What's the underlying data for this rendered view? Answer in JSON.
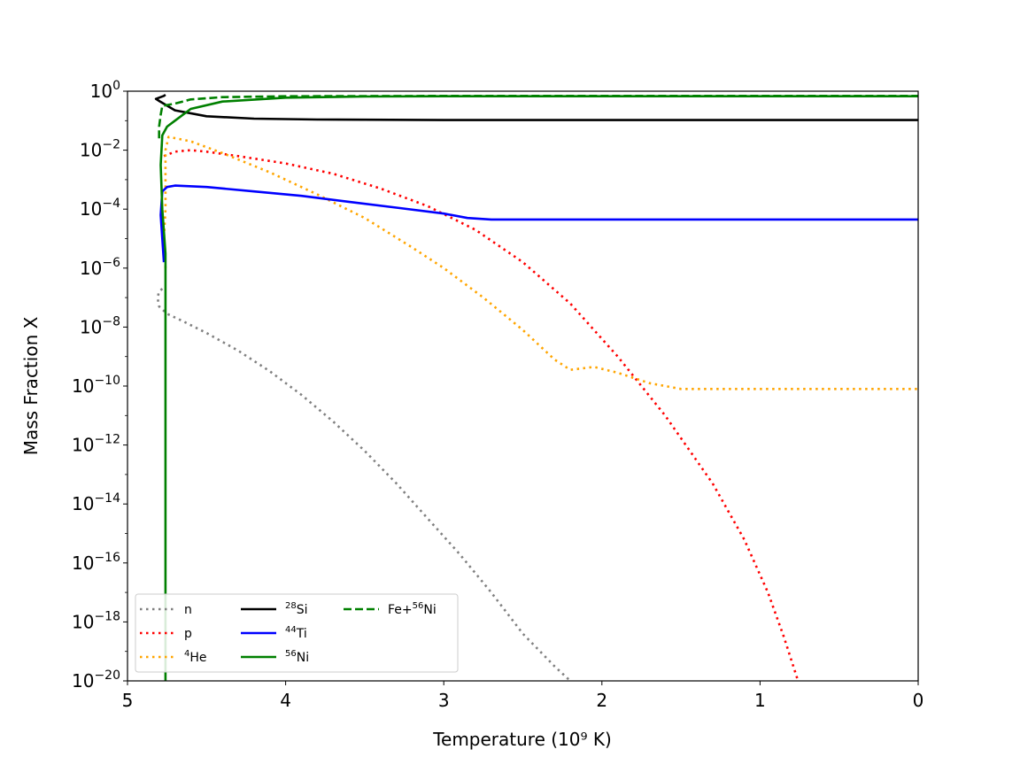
{
  "chart_data": {
    "type": "line",
    "title": "",
    "xlabel": "Temperature (10⁹ K)",
    "ylabel": "Mass Fraction X",
    "x_unit": "10^9 K",
    "xlim": [
      5,
      0
    ],
    "x_axis_inverted": true,
    "ylim": [
      1e-20,
      1
    ],
    "y_scale": "log",
    "grid": false,
    "legend_position": "lower-left",
    "legend_columns": 3,
    "x_ticks": [
      {
        "value": 5,
        "label": "5"
      },
      {
        "value": 4,
        "label": "4"
      },
      {
        "value": 3,
        "label": "3"
      },
      {
        "value": 2,
        "label": "2"
      },
      {
        "value": 1,
        "label": "1"
      },
      {
        "value": 0,
        "label": "0"
      }
    ],
    "y_ticks": [
      {
        "exp": 0,
        "base": "10",
        "sup": "0"
      },
      {
        "exp": -2,
        "base": "10",
        "sup": "−2"
      },
      {
        "exp": -4,
        "base": "10",
        "sup": "−4"
      },
      {
        "exp": -6,
        "base": "10",
        "sup": "−6"
      },
      {
        "exp": -8,
        "base": "10",
        "sup": "−8"
      },
      {
        "exp": -10,
        "base": "10",
        "sup": "−10"
      },
      {
        "exp": -12,
        "base": "10",
        "sup": "−12"
      },
      {
        "exp": -14,
        "base": "10",
        "sup": "−14"
      },
      {
        "exp": -16,
        "base": "10",
        "sup": "−16"
      },
      {
        "exp": -18,
        "base": "10",
        "sup": "−18"
      },
      {
        "exp": -20,
        "base": "10",
        "sup": "−20"
      }
    ],
    "series": [
      {
        "name": "n",
        "legend_sup": "",
        "legend_text": "n",
        "color": "#808080",
        "dash": "dotted",
        "points": [
          [
            4.78,
            -6.7
          ],
          [
            4.8,
            -6.8
          ],
          [
            4.81,
            -7.0
          ],
          [
            4.8,
            -7.3
          ],
          [
            4.75,
            -7.55
          ],
          [
            4.65,
            -7.8
          ],
          [
            4.5,
            -8.2
          ],
          [
            4.3,
            -8.8
          ],
          [
            4.1,
            -9.5
          ],
          [
            3.9,
            -10.3
          ],
          [
            3.7,
            -11.2
          ],
          [
            3.5,
            -12.2
          ],
          [
            3.3,
            -13.3
          ],
          [
            3.1,
            -14.5
          ],
          [
            2.9,
            -15.7
          ],
          [
            2.7,
            -17.0
          ],
          [
            2.5,
            -18.4
          ],
          [
            2.3,
            -19.5
          ],
          [
            2.2,
            -20.0
          ]
        ]
      },
      {
        "name": "p",
        "legend_sup": "",
        "legend_text": "p",
        "color": "#ff0000",
        "dash": "dotted",
        "points": [
          [
            4.77,
            -2.2
          ],
          [
            4.7,
            -2.05
          ],
          [
            4.6,
            -2.0
          ],
          [
            4.5,
            -2.05
          ],
          [
            4.3,
            -2.2
          ],
          [
            4.0,
            -2.45
          ],
          [
            3.7,
            -2.8
          ],
          [
            3.4,
            -3.3
          ],
          [
            3.1,
            -3.9
          ],
          [
            2.8,
            -4.7
          ],
          [
            2.5,
            -5.8
          ],
          [
            2.2,
            -7.2
          ],
          [
            1.9,
            -9.0
          ],
          [
            1.6,
            -11.0
          ],
          [
            1.3,
            -13.3
          ],
          [
            1.1,
            -15.2
          ],
          [
            0.95,
            -17.0
          ],
          [
            0.85,
            -18.5
          ],
          [
            0.76,
            -20.0
          ]
        ]
      },
      {
        "name": "He",
        "legend_sup": "4",
        "legend_text": "He",
        "color": "#ffa500",
        "dash": "dotted",
        "points": [
          [
            4.76,
            -6.0
          ],
          [
            4.77,
            -5.0
          ],
          [
            4.76,
            -4.0
          ],
          [
            4.76,
            -3.0
          ],
          [
            4.76,
            -2.0
          ],
          [
            4.74,
            -1.55
          ],
          [
            4.6,
            -1.7
          ],
          [
            4.4,
            -2.1
          ],
          [
            4.1,
            -2.75
          ],
          [
            3.8,
            -3.5
          ],
          [
            3.5,
            -4.3
          ],
          [
            3.2,
            -5.3
          ],
          [
            3.0,
            -6.0
          ],
          [
            2.75,
            -7.0
          ],
          [
            2.5,
            -8.1
          ],
          [
            2.3,
            -9.1
          ],
          [
            2.2,
            -9.45
          ],
          [
            2.05,
            -9.35
          ],
          [
            1.9,
            -9.55
          ],
          [
            1.7,
            -9.9
          ],
          [
            1.5,
            -10.1
          ],
          [
            1.0,
            -10.1
          ],
          [
            0.5,
            -10.1
          ],
          [
            0.0,
            -10.1
          ]
        ]
      },
      {
        "name": "Si",
        "legend_sup": "28",
        "legend_text": "Si",
        "color": "#000000",
        "dash": "solid",
        "points": [
          [
            4.76,
            -0.12
          ],
          [
            4.77,
            -0.16
          ],
          [
            4.8,
            -0.22
          ],
          [
            4.82,
            -0.26
          ],
          [
            4.8,
            -0.33
          ],
          [
            4.7,
            -0.65
          ],
          [
            4.5,
            -0.85
          ],
          [
            4.2,
            -0.93
          ],
          [
            3.8,
            -0.96
          ],
          [
            3.0,
            -0.98
          ],
          [
            2.0,
            -0.98
          ],
          [
            1.0,
            -0.98
          ],
          [
            0.0,
            -0.98
          ]
        ]
      },
      {
        "name": "Ti",
        "legend_sup": "44",
        "legend_text": "Ti",
        "color": "#0000ff",
        "dash": "solid",
        "points": [
          [
            4.77,
            -5.8
          ],
          [
            4.78,
            -5.0
          ],
          [
            4.79,
            -4.2
          ],
          [
            4.78,
            -3.4
          ],
          [
            4.75,
            -3.25
          ],
          [
            4.7,
            -3.2
          ],
          [
            4.5,
            -3.25
          ],
          [
            4.2,
            -3.4
          ],
          [
            3.9,
            -3.55
          ],
          [
            3.6,
            -3.75
          ],
          [
            3.3,
            -3.95
          ],
          [
            3.0,
            -4.15
          ],
          [
            2.85,
            -4.3
          ],
          [
            2.7,
            -4.35
          ],
          [
            2.0,
            -4.35
          ],
          [
            1.0,
            -4.35
          ],
          [
            0.0,
            -4.35
          ]
        ]
      },
      {
        "name": "Ni",
        "legend_sup": "56",
        "legend_text": "Ni",
        "color": "#008000",
        "dash": "solid",
        "points": [
          [
            4.76,
            -20.0
          ],
          [
            4.76,
            -10.0
          ],
          [
            4.76,
            -5.5
          ],
          [
            4.78,
            -4.0
          ],
          [
            4.79,
            -2.5
          ],
          [
            4.78,
            -1.5
          ],
          [
            4.75,
            -1.2
          ],
          [
            4.7,
            -1.0
          ],
          [
            4.6,
            -0.6
          ],
          [
            4.4,
            -0.35
          ],
          [
            4.0,
            -0.22
          ],
          [
            3.5,
            -0.18
          ],
          [
            3.0,
            -0.17
          ],
          [
            2.0,
            -0.17
          ],
          [
            1.0,
            -0.17
          ],
          [
            0.0,
            -0.17
          ]
        ]
      },
      {
        "name": "Fe+Ni",
        "legend_sup": "56",
        "legend_text": "Fe+Ni",
        "color": "#008000",
        "dash": "dashed",
        "points": [
          [
            4.8,
            -1.6
          ],
          [
            4.8,
            -1.2
          ],
          [
            4.79,
            -0.8
          ],
          [
            4.78,
            -0.5
          ],
          [
            4.7,
            -0.42
          ],
          [
            4.6,
            -0.28
          ],
          [
            4.4,
            -0.2
          ],
          [
            4.0,
            -0.17
          ],
          [
            3.0,
            -0.16
          ],
          [
            2.0,
            -0.16
          ],
          [
            1.0,
            -0.16
          ],
          [
            0.0,
            -0.16
          ]
        ]
      }
    ]
  }
}
